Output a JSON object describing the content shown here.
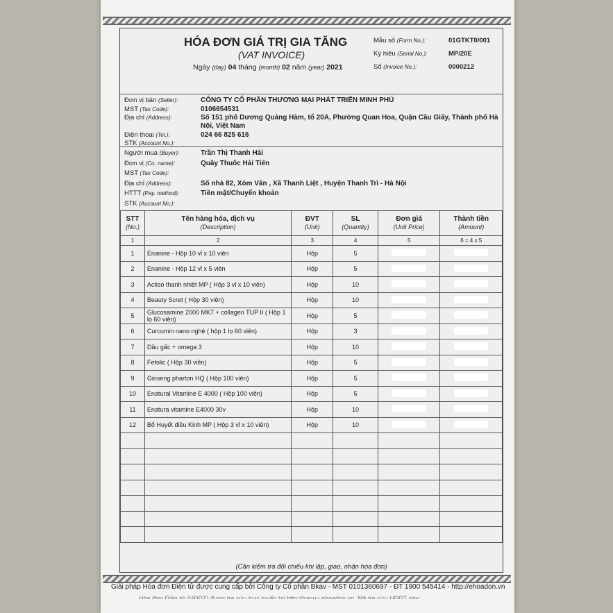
{
  "header": {
    "title": "HÓA ĐƠN GIÁ TRỊ GIA TĂNG",
    "subtitle": "(VAT INVOICE)",
    "date": {
      "day_label": "Ngày",
      "day_en": "(day)",
      "day": "04",
      "month_label": "tháng",
      "month_en": "(month)",
      "month": "02",
      "year_label": "năm",
      "year_en": "(year)",
      "year": "2021"
    },
    "meta": [
      {
        "label": "Mẫu số",
        "en": "(Form No.):",
        "value": "01GTKT0/001"
      },
      {
        "label": "Ký hiệu",
        "en": "(Serial No.):",
        "value": "MP/20E"
      },
      {
        "label": "Số",
        "en": "(Invoice No.):",
        "value": "0000212"
      }
    ]
  },
  "seller": [
    {
      "label": "Đơn vị bán",
      "en": "(Seller):",
      "value": "CÔNG TY CỔ PHẦN THƯƠNG MẠI PHÁT TRIỂN MINH PHÚ"
    },
    {
      "label": "MST",
      "en": "(Tax Code):",
      "value": "0106654531"
    },
    {
      "label": "Địa chỉ",
      "en": "(Address):",
      "value": "Số 151 phố Dương Quảng Hàm, tổ 20A, Phường Quan Hoa, Quận Cầu Giấy, Thành phố Hà",
      "value2": "Nội, Việt Nam"
    },
    {
      "label": "Điện thoại",
      "en": "(Tel.):",
      "value": "024 66 825 616"
    },
    {
      "label": "STK",
      "en": "(Account No.):",
      "value": ""
    }
  ],
  "buyer": [
    {
      "label": "Người mua",
      "en": "(Buyer):",
      "value": "Trần Thị Thanh Hải"
    },
    {
      "label": "Đơn vị",
      "en": "(Co. name):",
      "value": "Quầy Thuốc Hải Tiến"
    },
    {
      "label": "MST",
      "en": "(Tax Code):",
      "value": ""
    },
    {
      "label": "Địa chỉ",
      "en": "(Address):",
      "value": "Số nhà 82, Xóm Văn , Xã Thanh Liệt , Huyện Thanh Trì - Hà Nội"
    },
    {
      "label": "HTTT",
      "en": "(Pay. method):",
      "value": "Tiền mặt/Chuyển khoản"
    },
    {
      "label": "STK",
      "en": "(Account No.):",
      "value": ""
    }
  ],
  "table": {
    "columns": [
      {
        "label": "STT",
        "en": "(No.)",
        "num": "1"
      },
      {
        "label": "Tên hàng hóa, dịch vụ",
        "en": "(Description)",
        "num": "2"
      },
      {
        "label": "ĐVT",
        "en": "(Unit)",
        "num": "3"
      },
      {
        "label": "SL",
        "en": "(Quantity)",
        "num": "4"
      },
      {
        "label": "Đơn giá",
        "en": "(Unit Price)",
        "num": "5"
      },
      {
        "label": "Thành tiền",
        "en": "(Amount)",
        "num": "6 = 4 x 5"
      }
    ],
    "rows": [
      {
        "no": "1",
        "desc": "Enanine - Hộp 10 vỉ x 10 viên",
        "unit": "Hộp",
        "qty": "5"
      },
      {
        "no": "2",
        "desc": "Enanine - Hộp 12 vỉ x 5 viên",
        "unit": "Hộp",
        "qty": "5"
      },
      {
        "no": "3",
        "desc": "Actiso thanh nhiệt MP ( Hộp 3 vỉ x 10 viên)",
        "unit": "Hộp",
        "qty": "10"
      },
      {
        "no": "4",
        "desc": "Beauty Scret ( Hộp 30 viên)",
        "unit": "Hộp",
        "qty": "10"
      },
      {
        "no": "5",
        "desc": "Glucosamine 2000 MK7 + collagen TUP II ( Hộp 1 lọ 60 viên)",
        "unit": "Hộp",
        "qty": "5"
      },
      {
        "no": "6",
        "desc": "Curcumin nano nghệ ( hộp 1 lọ 60 viên)",
        "unit": "Hộp",
        "qty": "3"
      },
      {
        "no": "7",
        "desc": "Dầu gấc + omega 3",
        "unit": "Hộp",
        "qty": "10"
      },
      {
        "no": "8",
        "desc": "Fefolic ( Hộp 30 viên)",
        "unit": "Hộp",
        "qty": "5"
      },
      {
        "no": "9",
        "desc": "Ginseng pharton HQ ( Hộp 100 viên)",
        "unit": "Hộp",
        "qty": "5"
      },
      {
        "no": "10",
        "desc": "Enatural Vitamine E 4000 ( Hộp 100 viên)",
        "unit": "Hộp",
        "qty": "5"
      },
      {
        "no": "11",
        "desc": "Enatura vitamine E4000 30v",
        "unit": "Hộp",
        "qty": "10"
      },
      {
        "no": "12",
        "desc": "Bổ Huyết điều Kinh MP ( Hộp 3 vỉ x 10 viên)",
        "unit": "Hộp",
        "qty": "10"
      }
    ]
  },
  "note": "(Cần kiểm tra đối chiếu khi lập, giao, nhận hóa đơn)",
  "footer": {
    "text": "Giải pháp Hóa đơn Điện tử được cung cấp bởi Công ty Cổ phần Bkav - MST 0101360697 - ĐT 1900 545414 - http://ehoadon.vn",
    "text2": "Hóa đơn Điện tử (HĐĐT) được tra cứu trực tuyến tại http://tracuu.ehoadon.vn. Mã tra cứu HĐĐT này:"
  }
}
